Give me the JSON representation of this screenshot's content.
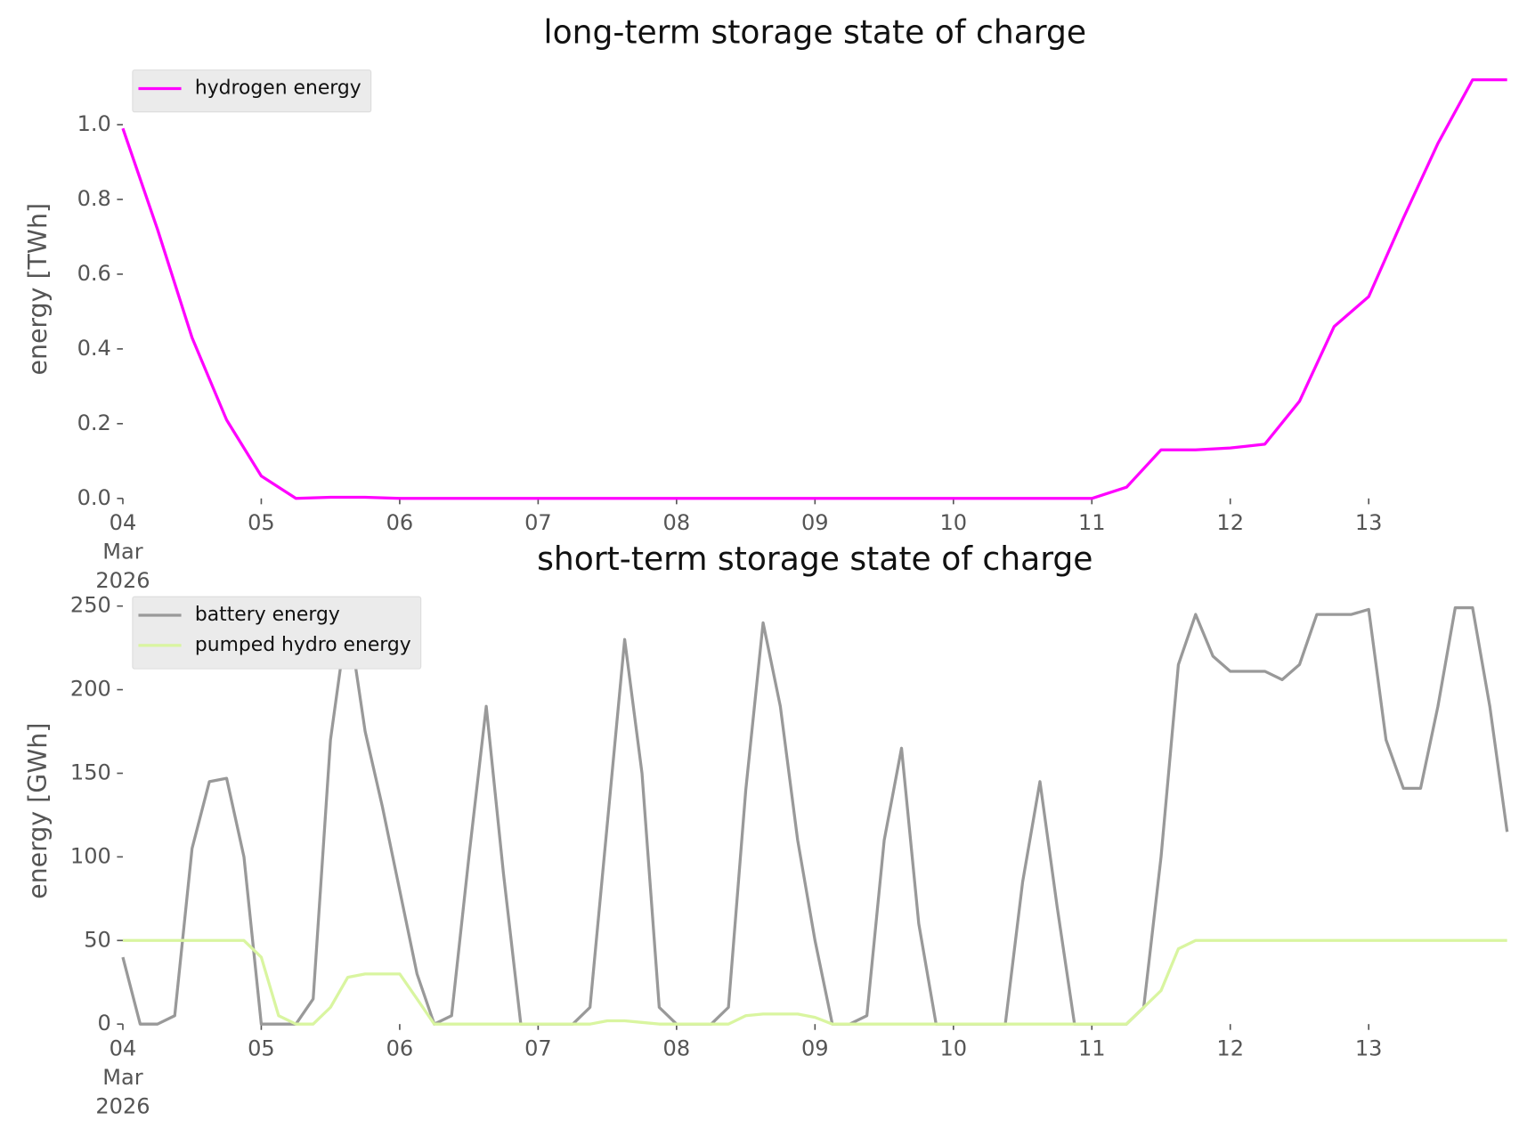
{
  "chart_data": [
    {
      "type": "line",
      "title": "long-term storage state of charge",
      "ylabel": "energy [TWh]",
      "x": [
        "2026-03-04 00:00",
        "2026-03-04 06:00",
        "2026-03-04 12:00",
        "2026-03-04 18:00",
        "2026-03-05 00:00",
        "2026-03-05 06:00",
        "2026-03-05 12:00",
        "2026-03-05 18:00",
        "2026-03-06 00:00",
        "2026-03-06 06:00",
        "2026-03-06 12:00",
        "2026-03-06 18:00",
        "2026-03-07 00:00",
        "2026-03-07 06:00",
        "2026-03-07 12:00",
        "2026-03-07 18:00",
        "2026-03-08 00:00",
        "2026-03-08 06:00",
        "2026-03-08 12:00",
        "2026-03-08 18:00",
        "2026-03-09 00:00",
        "2026-03-09 06:00",
        "2026-03-09 12:00",
        "2026-03-09 18:00",
        "2026-03-10 00:00",
        "2026-03-10 06:00",
        "2026-03-10 12:00",
        "2026-03-10 18:00",
        "2026-03-11 00:00",
        "2026-03-11 06:00",
        "2026-03-11 12:00",
        "2026-03-11 18:00",
        "2026-03-12 00:00",
        "2026-03-12 06:00",
        "2026-03-12 12:00",
        "2026-03-12 18:00",
        "2026-03-13 00:00",
        "2026-03-13 06:00",
        "2026-03-13 12:00",
        "2026-03-13 18:00",
        "2026-03-14 00:00"
      ],
      "series": [
        {
          "name": "hydrogen energy",
          "color": "#ff00ff",
          "values": [
            0.99,
            0.72,
            0.43,
            0.21,
            0.06,
            0,
            0.003,
            0.003,
            0,
            0,
            0,
            0,
            0,
            0,
            0,
            0,
            0,
            0,
            0,
            0,
            0,
            0,
            0,
            0,
            0,
            0,
            0,
            0,
            0,
            0.03,
            0.13,
            0.13,
            0.135,
            0.145,
            0.26,
            0.46,
            0.54,
            0.75,
            0.95,
            1.12,
            1.12
          ]
        }
      ],
      "xlim": [
        "2026-03-04",
        "2026-03-14"
      ],
      "xticks": [
        {
          "value": "2026-03-04",
          "label": "04\nMar\n2026"
        },
        {
          "value": "2026-03-05",
          "label": "05"
        },
        {
          "value": "2026-03-06",
          "label": "06"
        },
        {
          "value": "2026-03-07",
          "label": "07"
        },
        {
          "value": "2026-03-08",
          "label": "08"
        },
        {
          "value": "2026-03-09",
          "label": "09"
        },
        {
          "value": "2026-03-10",
          "label": "10"
        },
        {
          "value": "2026-03-11",
          "label": "11"
        },
        {
          "value": "2026-03-12",
          "label": "12"
        },
        {
          "value": "2026-03-13",
          "label": "13"
        }
      ],
      "ylim": [
        0,
        1.12
      ],
      "yticks": [
        {
          "value": 0,
          "label": "0.0"
        },
        {
          "value": 0.2,
          "label": "0.2"
        },
        {
          "value": 0.4,
          "label": "0.4"
        },
        {
          "value": 0.6,
          "label": "0.6"
        },
        {
          "value": 0.8,
          "label": "0.8"
        },
        {
          "value": 1,
          "label": "1.0"
        }
      ],
      "legend": "upper left",
      "grid": false
    },
    {
      "type": "line",
      "title": "short-term storage state of charge",
      "ylabel": "energy [GWh]",
      "x": [
        "2026-03-04 00:00",
        "2026-03-04 03:00",
        "2026-03-04 06:00",
        "2026-03-04 09:00",
        "2026-03-04 12:00",
        "2026-03-04 15:00",
        "2026-03-04 18:00",
        "2026-03-04 21:00",
        "2026-03-05 00:00",
        "2026-03-05 03:00",
        "2026-03-05 06:00",
        "2026-03-05 09:00",
        "2026-03-05 12:00",
        "2026-03-05 15:00",
        "2026-03-05 18:00",
        "2026-03-05 21:00",
        "2026-03-06 00:00",
        "2026-03-06 03:00",
        "2026-03-06 06:00",
        "2026-03-06 09:00",
        "2026-03-06 12:00",
        "2026-03-06 15:00",
        "2026-03-06 18:00",
        "2026-03-06 21:00",
        "2026-03-07 00:00",
        "2026-03-07 03:00",
        "2026-03-07 06:00",
        "2026-03-07 09:00",
        "2026-03-07 12:00",
        "2026-03-07 15:00",
        "2026-03-07 18:00",
        "2026-03-07 21:00",
        "2026-03-08 00:00",
        "2026-03-08 03:00",
        "2026-03-08 06:00",
        "2026-03-08 09:00",
        "2026-03-08 12:00",
        "2026-03-08 15:00",
        "2026-03-08 18:00",
        "2026-03-08 21:00",
        "2026-03-09 00:00",
        "2026-03-09 03:00",
        "2026-03-09 06:00",
        "2026-03-09 09:00",
        "2026-03-09 12:00",
        "2026-03-09 15:00",
        "2026-03-09 18:00",
        "2026-03-09 21:00",
        "2026-03-10 00:00",
        "2026-03-10 03:00",
        "2026-03-10 06:00",
        "2026-03-10 09:00",
        "2026-03-10 12:00",
        "2026-03-10 15:00",
        "2026-03-10 18:00",
        "2026-03-10 21:00",
        "2026-03-11 00:00",
        "2026-03-11 03:00",
        "2026-03-11 06:00",
        "2026-03-11 09:00",
        "2026-03-11 12:00",
        "2026-03-11 15:00",
        "2026-03-11 18:00",
        "2026-03-11 21:00",
        "2026-03-12 00:00",
        "2026-03-12 03:00",
        "2026-03-12 06:00",
        "2026-03-12 09:00",
        "2026-03-12 12:00",
        "2026-03-12 15:00",
        "2026-03-12 18:00",
        "2026-03-12 21:00",
        "2026-03-13 00:00",
        "2026-03-13 03:00",
        "2026-03-13 06:00",
        "2026-03-13 09:00",
        "2026-03-13 12:00",
        "2026-03-13 15:00",
        "2026-03-13 18:00",
        "2026-03-13 21:00",
        "2026-03-14 00:00"
      ],
      "series": [
        {
          "name": "battery energy",
          "color": "#999999",
          "values": [
            40,
            0,
            0,
            5,
            105,
            145,
            147,
            100,
            0,
            0,
            0,
            15,
            170,
            245,
            175,
            130,
            80,
            30,
            0,
            5,
            100,
            190,
            90,
            0,
            0,
            0,
            0,
            10,
            120,
            230,
            150,
            10,
            0,
            0,
            0,
            10,
            140,
            240,
            190,
            110,
            50,
            0,
            0,
            5,
            110,
            165,
            60,
            0,
            0,
            0,
            0,
            0,
            85,
            145,
            70,
            0,
            0,
            0,
            0,
            10,
            100,
            215,
            245,
            220,
            211,
            211,
            211,
            206,
            215,
            245,
            245,
            245,
            248,
            170,
            141,
            141,
            190,
            249,
            249,
            190,
            115
          ]
        },
        {
          "name": "pumped hydro energy",
          "color": "#d9f5a0",
          "values": [
            50,
            50,
            50,
            50,
            50,
            50,
            50,
            50,
            40,
            5,
            0,
            0,
            10,
            28,
            30,
            30,
            30,
            15,
            0,
            0,
            0,
            0,
            0,
            0,
            0,
            0,
            0,
            0,
            2,
            2,
            1,
            0,
            0,
            0,
            0,
            0,
            5,
            6,
            6,
            6,
            4,
            0,
            0,
            0,
            0,
            0,
            0,
            0,
            0,
            0,
            0,
            0,
            0,
            0,
            0,
            0,
            0,
            0,
            0,
            10,
            20,
            45,
            50,
            50,
            50,
            50,
            50,
            50,
            50,
            50,
            50,
            50,
            50,
            50,
            50,
            50,
            50,
            50,
            50,
            50,
            50
          ]
        }
      ],
      "xlim": [
        "2026-03-04",
        "2026-03-14"
      ],
      "xticks": [
        {
          "value": "2026-03-04",
          "label": "04\nMar\n2026"
        },
        {
          "value": "2026-03-05",
          "label": "05"
        },
        {
          "value": "2026-03-06",
          "label": "06"
        },
        {
          "value": "2026-03-07",
          "label": "07"
        },
        {
          "value": "2026-03-08",
          "label": "08"
        },
        {
          "value": "2026-03-09",
          "label": "09"
        },
        {
          "value": "2026-03-10",
          "label": "10"
        },
        {
          "value": "2026-03-11",
          "label": "11"
        },
        {
          "value": "2026-03-12",
          "label": "12"
        },
        {
          "value": "2026-03-13",
          "label": "13"
        }
      ],
      "ylim": [
        0,
        255
      ],
      "yticks": [
        0,
        50,
        100,
        150,
        200,
        250
      ],
      "legend": "upper left",
      "grid": false
    }
  ]
}
